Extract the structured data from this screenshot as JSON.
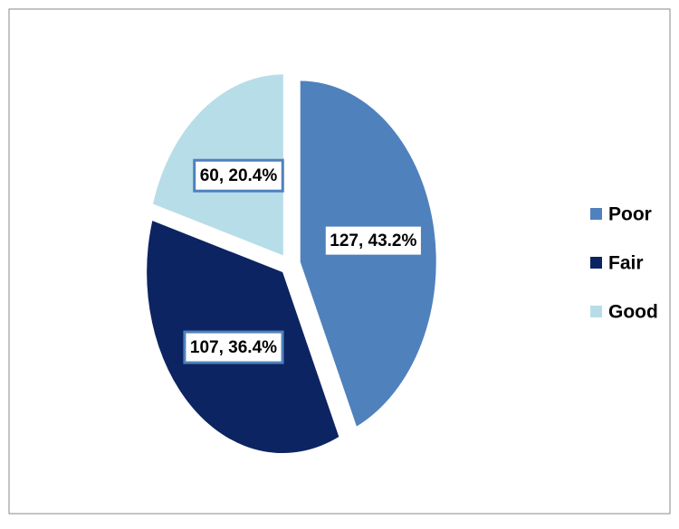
{
  "chart_data": {
    "type": "pie",
    "categories": [
      "Poor",
      "Fair",
      "Good"
    ],
    "values": [
      127,
      107,
      60
    ],
    "value_labels": [
      "127, 43.2%",
      "107, 36.4%",
      "60, 20.4%"
    ],
    "colors": [
      "#4f81bd",
      "#0c2461",
      "#b7dde8"
    ],
    "legend": "right"
  }
}
